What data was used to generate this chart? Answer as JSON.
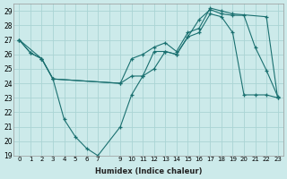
{
  "xlabel": "Humidex (Indice chaleur)",
  "background_color": "#cceaea",
  "grid_color": "#aad4d4",
  "line_color": "#1a7070",
  "xlim": [
    -0.5,
    23.5
  ],
  "ylim": [
    19,
    29.5
  ],
  "yticks": [
    19,
    20,
    21,
    22,
    23,
    24,
    25,
    26,
    27,
    28,
    29
  ],
  "xtick_labels": [
    "0",
    "1",
    "2",
    "3",
    "4",
    "5",
    "6",
    "7",
    "",
    "9",
    "10",
    "11",
    "12",
    "13",
    "14",
    "15",
    "16",
    "17",
    "18",
    "19",
    "20",
    "21",
    "22",
    "23"
  ],
  "xtick_positions": [
    0,
    1,
    2,
    3,
    4,
    5,
    6,
    7,
    8,
    9,
    10,
    11,
    12,
    13,
    14,
    15,
    16,
    17,
    18,
    19,
    20,
    21,
    22,
    23
  ],
  "line1_x": [
    0,
    1,
    2,
    3,
    4,
    5,
    6,
    7,
    9,
    10,
    11,
    12,
    13,
    14,
    15,
    16,
    17,
    18,
    19,
    20,
    21,
    22,
    23
  ],
  "line1_y": [
    27.0,
    26.1,
    25.7,
    24.3,
    21.5,
    20.3,
    19.5,
    19.0,
    21.0,
    23.2,
    24.5,
    25.0,
    26.2,
    26.0,
    27.2,
    28.4,
    29.1,
    28.8,
    28.7,
    28.7,
    26.5,
    24.9,
    23.1
  ],
  "line2_x": [
    0,
    1,
    2,
    3,
    9,
    10,
    11,
    12,
    13,
    14,
    15,
    16,
    17,
    18,
    19,
    20,
    21,
    22,
    23
  ],
  "line2_y": [
    27.0,
    26.1,
    25.7,
    24.3,
    24.0,
    24.5,
    24.5,
    26.2,
    26.2,
    26.0,
    27.2,
    27.5,
    28.8,
    28.6,
    27.5,
    23.2,
    23.2,
    23.2,
    23.0
  ],
  "line3_x": [
    0,
    2,
    3,
    9,
    10,
    11,
    12,
    13,
    14,
    15,
    16,
    17,
    18,
    19,
    22,
    23
  ],
  "line3_y": [
    27.0,
    25.7,
    24.3,
    24.0,
    25.7,
    26.0,
    26.5,
    26.8,
    26.2,
    27.5,
    27.8,
    29.2,
    29.0,
    28.8,
    28.6,
    23.0
  ]
}
